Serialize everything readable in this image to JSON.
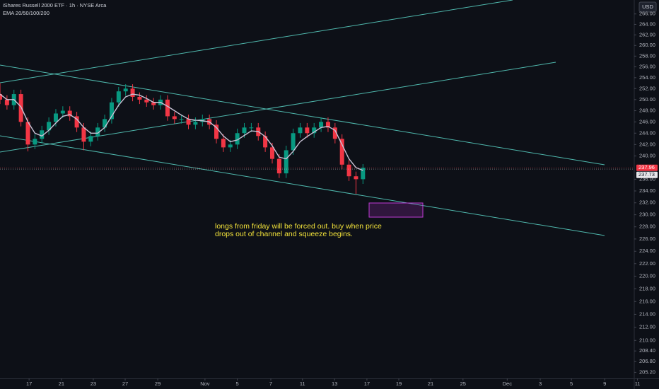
{
  "chart_data": {
    "type": "candlestick",
    "title": "iShares Russell 2000 ETF · 1h · NYSE Arca",
    "currency": "USD",
    "log_scale": true,
    "up_color": "#089981",
    "down_color": "#f23645",
    "x": [
      0,
      3,
      6,
      9,
      12,
      15,
      18,
      21,
      24,
      27,
      30,
      33,
      36,
      39,
      42,
      45,
      48,
      51,
      54,
      57,
      60,
      63,
      66,
      69,
      72,
      75,
      78,
      81,
      84,
      87,
      90,
      93,
      96,
      99,
      102,
      105,
      108,
      111,
      114,
      117,
      120,
      123,
      126,
      129,
      132,
      135,
      138,
      141,
      144,
      147,
      150,
      153,
      156
    ],
    "open": [
      251,
      250,
      249,
      251,
      246,
      242,
      243,
      244.5,
      246,
      247.5,
      248,
      247,
      245,
      242.5,
      243.5,
      245,
      246.5,
      249.5,
      251.5,
      252,
      250.5,
      250,
      249.5,
      249,
      250,
      247,
      246.5,
      246.5,
      245.5,
      246,
      246.5,
      245.5,
      243,
      241.5,
      242,
      244,
      245,
      245,
      243.5,
      241.5,
      239.5,
      237,
      241,
      244,
      245,
      244,
      245,
      246,
      245,
      243,
      238.5,
      236.5,
      236
    ],
    "high": [
      253,
      250.8,
      251.8,
      251.8,
      246.8,
      243.8,
      245.3,
      246.8,
      248.3,
      248.8,
      248.8,
      247.8,
      245.8,
      244.3,
      245.8,
      247.3,
      250.3,
      252.3,
      252.8,
      252.8,
      251.3,
      250.8,
      250.3,
      250.8,
      250.8,
      247.8,
      247.3,
      247.3,
      246.8,
      247.3,
      247.3,
      246.3,
      243.8,
      242.8,
      244.8,
      245.8,
      245.8,
      245.8,
      244.3,
      242.3,
      240.3,
      241.8,
      244.8,
      245.8,
      245.8,
      245.8,
      246.8,
      246.8,
      245.8,
      243.8,
      239.3,
      237.3,
      238.6
    ],
    "low": [
      249.2,
      248.2,
      248.2,
      245.2,
      240.8,
      241.2,
      242.2,
      243.7,
      245.2,
      246.7,
      246.2,
      244.2,
      241,
      241.7,
      242.7,
      244.2,
      245.7,
      248.7,
      250.7,
      249.7,
      249.2,
      248.7,
      248.2,
      248.2,
      246.2,
      245.7,
      245.7,
      244.7,
      244.7,
      245.2,
      244.7,
      242.2,
      240.7,
      240.7,
      241.2,
      243.2,
      244.2,
      242.7,
      240.7,
      238.7,
      236.2,
      236.2,
      240.2,
      243.2,
      243.2,
      243.2,
      244.2,
      244.2,
      242.2,
      237.7,
      235.7,
      233.5,
      235.2
    ],
    "close": [
      250,
      249,
      251,
      246,
      242,
      243,
      244.5,
      246,
      247.5,
      248,
      247,
      245,
      242.5,
      243.5,
      245,
      246.5,
      249.5,
      251.5,
      252,
      250.5,
      250,
      249.5,
      249,
      250,
      247,
      246.5,
      246.5,
      245.5,
      246,
      246.5,
      245.5,
      243,
      241.5,
      242,
      244,
      245,
      245,
      243.5,
      241.5,
      239.5,
      237,
      241,
      244,
      245,
      244,
      245,
      246,
      245,
      243,
      238.5,
      236.5,
      236,
      237.96
    ],
    "ema": {
      "name": "EMA 20/50/100/200",
      "color": "#c9c3d6",
      "values": [
        251,
        250,
        250,
        248.7,
        246,
        244,
        243.5,
        244.5,
        245.8,
        247,
        247.3,
        246.5,
        245,
        244,
        244,
        245,
        247,
        249,
        250.5,
        251,
        250.8,
        250.2,
        249.5,
        249.5,
        248.8,
        248,
        247.2,
        246.5,
        246.3,
        246.2,
        246,
        245,
        243.5,
        242.5,
        242.8,
        243.6,
        244.4,
        244.3,
        243.4,
        241.8,
        239.8,
        239.5,
        240.8,
        242.5,
        243.4,
        244.2,
        245,
        245.2,
        244.5,
        242,
        239.5,
        238,
        237.5
      ]
    },
    "price_labels": [
      {
        "value": 237.96,
        "label": "237.96",
        "color": "#f23645"
      },
      {
        "value": 237.73,
        "label": "237.73",
        "color": "#e6e6ea"
      }
    ],
    "xlim": [
      0,
      272.3
    ],
    "xticks": [
      {
        "value": 12.5,
        "label": "17"
      },
      {
        "value": 26.4,
        "label": "21"
      },
      {
        "value": 40.1,
        "label": "23"
      },
      {
        "value": 53.8,
        "label": "27"
      },
      {
        "value": 67.8,
        "label": "29"
      },
      {
        "value": 88.1,
        "label": "Nov"
      },
      {
        "value": 102,
        "label": "5"
      },
      {
        "value": 116.4,
        "label": "7"
      },
      {
        "value": 130,
        "label": "11"
      },
      {
        "value": 143.8,
        "label": "13"
      },
      {
        "value": 157.7,
        "label": "17"
      },
      {
        "value": 171.4,
        "label": "19"
      },
      {
        "value": 185.1,
        "label": "21"
      },
      {
        "value": 199,
        "label": "25"
      },
      {
        "value": 218,
        "label": "Dec"
      },
      {
        "value": 232.2,
        "label": "3"
      },
      {
        "value": 245.6,
        "label": "5"
      },
      {
        "value": 259.9,
        "label": "9"
      },
      {
        "value": 274,
        "label": "11"
      }
    ],
    "ylim": [
      204.3,
      268.7
    ],
    "yticks": [
      {
        "value": 266,
        "label": "266.00"
      },
      {
        "value": 264,
        "label": "264.00"
      },
      {
        "value": 262,
        "label": "262.00"
      },
      {
        "value": 260,
        "label": "260.00"
      },
      {
        "value": 258,
        "label": "258.00"
      },
      {
        "value": 256,
        "label": "256.00"
      },
      {
        "value": 254,
        "label": "254.00"
      },
      {
        "value": 252,
        "label": "252.00"
      },
      {
        "value": 250,
        "label": "250.00"
      },
      {
        "value": 248,
        "label": "248.00"
      },
      {
        "value": 246,
        "label": "246.00"
      },
      {
        "value": 244,
        "label": "244.00"
      },
      {
        "value": 242,
        "label": "242.00"
      },
      {
        "value": 240,
        "label": "240.00"
      },
      {
        "value": 236,
        "label": "236.00"
      },
      {
        "value": 234,
        "label": "234.00"
      },
      {
        "value": 232,
        "label": "232.00"
      },
      {
        "value": 230,
        "label": "230.00"
      },
      {
        "value": 228,
        "label": "228.00"
      },
      {
        "value": 226,
        "label": "226.00"
      },
      {
        "value": 224,
        "label": "224.00"
      },
      {
        "value": 222,
        "label": "222.00"
      },
      {
        "value": 220,
        "label": "220.00"
      },
      {
        "value": 218,
        "label": "218.00"
      },
      {
        "value": 216,
        "label": "216.00"
      },
      {
        "value": 214,
        "label": "214.00"
      },
      {
        "value": 212,
        "label": "212.00"
      },
      {
        "value": 210,
        "label": "210.00"
      },
      {
        "value": 208.4,
        "label": "208.40"
      },
      {
        "value": 206.8,
        "label": "206.80"
      },
      {
        "value": 205.2,
        "label": "205.20"
      }
    ],
    "annotation": {
      "color": "#f2e23a",
      "lines": [
        "longs from friday will be forced out. buy when price",
        "drops out of channel and squeeze begins."
      ]
    }
  }
}
